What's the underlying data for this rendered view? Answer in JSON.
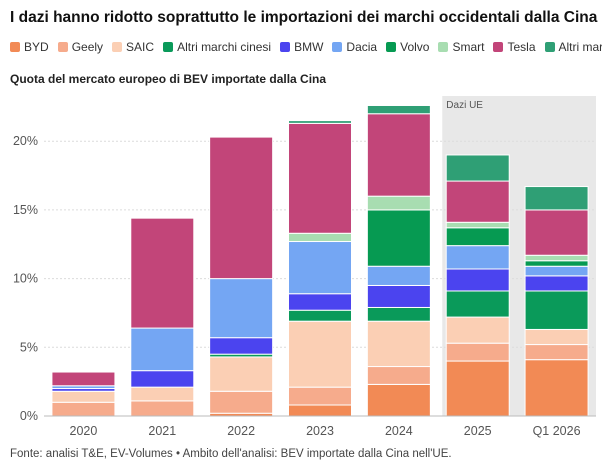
{
  "title": "I dazi hanno ridotto soprattutto le importazioni dei marchi occidentali dalla Cina",
  "subtitle": "Quota del mercato europeo di BEV importate dalla Cina",
  "footer": "Fonte: analisi T&E, EV-Volumes • Ambito dell'analisi: BEV importate dalla Cina nell'UE.",
  "chart_data": {
    "type": "bar",
    "stacked": true,
    "categories": [
      "2020",
      "2021",
      "2022",
      "2023",
      "2024",
      "2025",
      "Q1 2026"
    ],
    "ylim": [
      0,
      23
    ],
    "yticks": [
      0,
      5,
      10,
      15,
      20
    ],
    "ytick_labels": [
      "0%",
      "5%",
      "10%",
      "15%",
      "20%"
    ],
    "grid": true,
    "legend_position": "top",
    "shaded_region": {
      "label": "Dazi UE",
      "categories": [
        "2025",
        "Q1 2026"
      ],
      "color": "#e8e8e8"
    },
    "series": [
      {
        "name": "BYD",
        "color": "#f28a55",
        "values": [
          0,
          0,
          0.2,
          0.8,
          2.3,
          4.0,
          4.1
        ]
      },
      {
        "name": "Geely",
        "color": "#f6ab8c",
        "values": [
          1.0,
          1.1,
          1.6,
          1.3,
          1.3,
          1.3,
          1.1
        ]
      },
      {
        "name": "SAIC",
        "color": "#fbcfb4",
        "values": [
          0.8,
          1.0,
          2.5,
          4.8,
          3.3,
          1.9,
          1.1
        ]
      },
      {
        "name": "Altri marchi cinesi",
        "color": "#0a9a5a",
        "values": [
          0,
          0,
          0.2,
          0.8,
          1.0,
          1.9,
          2.8
        ]
      },
      {
        "name": "BMW",
        "color": "#4b44ef",
        "values": [
          0.2,
          1.2,
          1.2,
          1.2,
          1.6,
          1.6,
          1.1
        ]
      },
      {
        "name": "Dacia",
        "color": "#74a6f3",
        "values": [
          0.2,
          3.1,
          4.3,
          3.8,
          1.4,
          1.7,
          0.7
        ]
      },
      {
        "name": "Volvo",
        "color": "#069a52",
        "values": [
          0,
          0,
          0,
          0,
          4.1,
          1.3,
          0.4
        ]
      },
      {
        "name": "Smart",
        "color": "#a8ddb1",
        "values": [
          0,
          0,
          0,
          0.6,
          1.0,
          0.4,
          0.4
        ]
      },
      {
        "name": "Tesla",
        "color": "#c24579",
        "values": [
          1.0,
          8.0,
          10.3,
          8.0,
          6.0,
          3.0,
          3.3
        ]
      },
      {
        "name": "Altri marchi",
        "color": "#2f9f75",
        "values": [
          0,
          0,
          0,
          0.2,
          0.6,
          1.9,
          1.7
        ]
      }
    ]
  }
}
